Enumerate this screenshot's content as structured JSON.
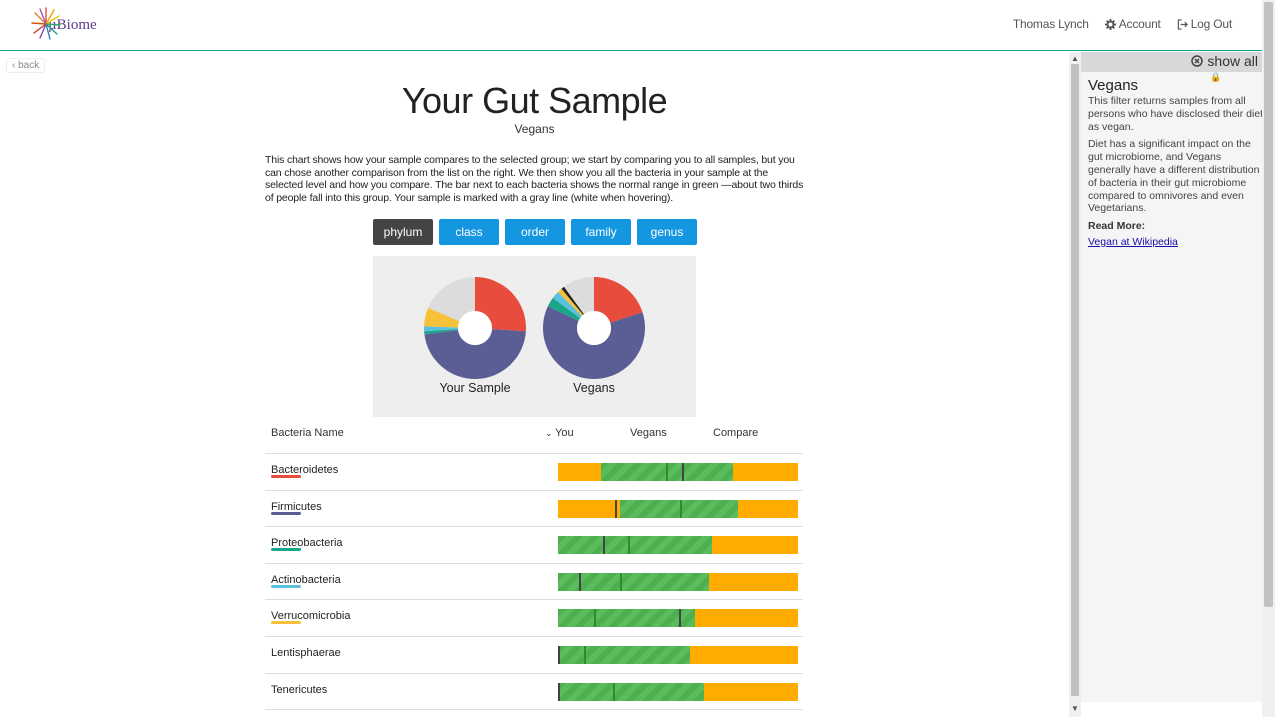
{
  "header": {
    "logo_text": "µBiome",
    "user_name": "Thomas Lynch",
    "account_label": "Account",
    "logout_label": "Log Out"
  },
  "main": {
    "back_label": "back",
    "title": "Your Gut Sample",
    "subtitle": "Vegans",
    "intro": "This chart shows how your sample compares to the selected group; we start by comparing you to all samples, but you can chose another comparison from the list on the right. We then show you all the bacteria in your sample at the selected level and how you compare. The bar next to each bacteria shows the normal range in green —about two thirds of people fall into this group. Your sample is marked with a gray line (white when hovering).",
    "levels": [
      "phylum",
      "class",
      "order",
      "family",
      "genus"
    ],
    "active_level": "phylum",
    "donut_labels": [
      "Your Sample",
      "Vegans"
    ]
  },
  "chart_data": [
    {
      "type": "pie",
      "title": "Your Sample",
      "categories": [
        "Bacteroidetes",
        "Firmicutes",
        "Proteobacteria",
        "Actinobacteria",
        "Verrucomicrobia",
        "Other"
      ],
      "values": [
        26,
        47,
        1,
        1.5,
        6,
        18.5
      ],
      "colors": [
        "#e74c3c",
        "#5b5e94",
        "#1aa68a",
        "#5bc0de",
        "#f7c23a",
        "#dcdcdc"
      ]
    },
    {
      "type": "pie",
      "title": "Vegans",
      "categories": [
        "Bacteroidetes",
        "Firmicutes",
        "Proteobacteria",
        "Actinobacteria",
        "Verrucomicrobia",
        "Black",
        "Other"
      ],
      "values": [
        20,
        62,
        3,
        2.5,
        1.5,
        1,
        10
      ],
      "colors": [
        "#e74c3c",
        "#5b5e94",
        "#1aa68a",
        "#5bc0de",
        "#f7c23a",
        "#222222",
        "#dcdcdc"
      ]
    }
  ],
  "table": {
    "headers": {
      "name": "Bacteria Name",
      "you": "You",
      "group": "Vegans",
      "compare": "Compare"
    },
    "sort_icon": "chevron-down-icon",
    "rows": [
      {
        "name": "Bacteroidetes",
        "color": "#e74c3c",
        "range": [
          0.18,
          0.73
        ],
        "median": 0.45,
        "you": 0.52
      },
      {
        "name": "Firmicutes",
        "color": "#5b5e94",
        "range": [
          0.26,
          0.75
        ],
        "median": 0.51,
        "you": 0.24
      },
      {
        "name": "Proteobacteria",
        "color": "#1aa68a",
        "range": [
          0.0,
          0.64
        ],
        "median": 0.29,
        "you": 0.19
      },
      {
        "name": "Actinobacteria",
        "color": "#5bc0de",
        "range": [
          0.0,
          0.63
        ],
        "median": 0.26,
        "you": 0.09
      },
      {
        "name": "Verrucomicrobia",
        "color": "#f7c23a",
        "range": [
          0.0,
          0.57
        ],
        "median": 0.15,
        "you": 0.51
      },
      {
        "name": "Lentisphaerae",
        "color": "",
        "range": [
          0.0,
          0.55
        ],
        "median": 0.11,
        "you": 0.0
      },
      {
        "name": "Tenericutes",
        "color": "",
        "range": [
          0.0,
          0.61
        ],
        "median": 0.23,
        "you": 0.0
      }
    ]
  },
  "panel": {
    "show_all_label": "show all",
    "title": "Vegans",
    "para1": "This filter returns samples from all persons who have disclosed their diet as vegan.",
    "para2": "Diet has a significant impact on the gut microbiome, and Vegans generally have a different distribution of bacteria in their gut microbiome compared to omnivores and even Vegetarians.",
    "read_more": "Read More:",
    "link_text": "Vegan at Wikipedia"
  },
  "colors": {
    "accent": "#1596e0",
    "range_green": "#4caf50",
    "range_orange": "#ffab00"
  }
}
